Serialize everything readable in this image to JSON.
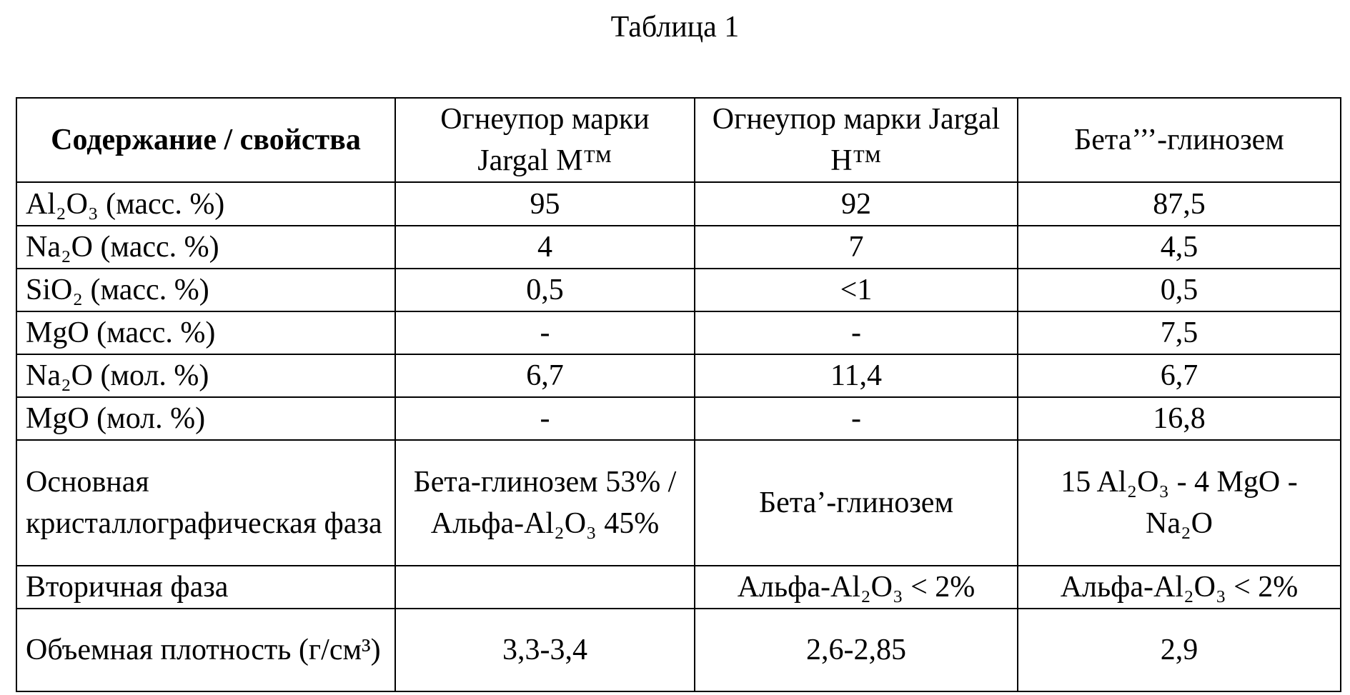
{
  "header": {
    "title": "Таблица 1"
  },
  "table": {
    "header": [
      "Содержание / свойства",
      "Огнеупор марки Jargal M™",
      "Огнеупор марки Jargal H™",
      "Бета’’’-глинозем"
    ],
    "rows": [
      [
        "Al₂O₃ (масс. %)",
        "95",
        "92",
        "87,5"
      ],
      [
        "Na₂O (масс. %)",
        "4",
        "7",
        "4,5"
      ],
      [
        "SiO₂ (масс. %)",
        "0,5",
        "<1",
        "0,5"
      ],
      [
        "MgO (масс. %)",
        "-",
        "-",
        "7,5"
      ],
      [
        "Na₂O (мол. %)",
        "6,7",
        "11,4",
        "6,7"
      ],
      [
        "MgO (мол. %)",
        "-",
        "-",
        "16,8"
      ],
      [
        "Основная кристаллографическая фаза",
        "Бета-глинозем 53% / Альфа-Al₂O₃ 45%",
        "Бета’-глинозем",
        "15 Al₂O₃ - 4 MgO - Na₂O"
      ],
      [
        "Вторичная фаза",
        null,
        "Альфа-Al₂O₃ < 2%",
        "Альфа-Al₂O₃ < 2%"
      ],
      [
        "Объемная плотность (г/см³)",
        "3,3-3,4",
        "2,6-2,85",
        "2,9"
      ]
    ]
  }
}
